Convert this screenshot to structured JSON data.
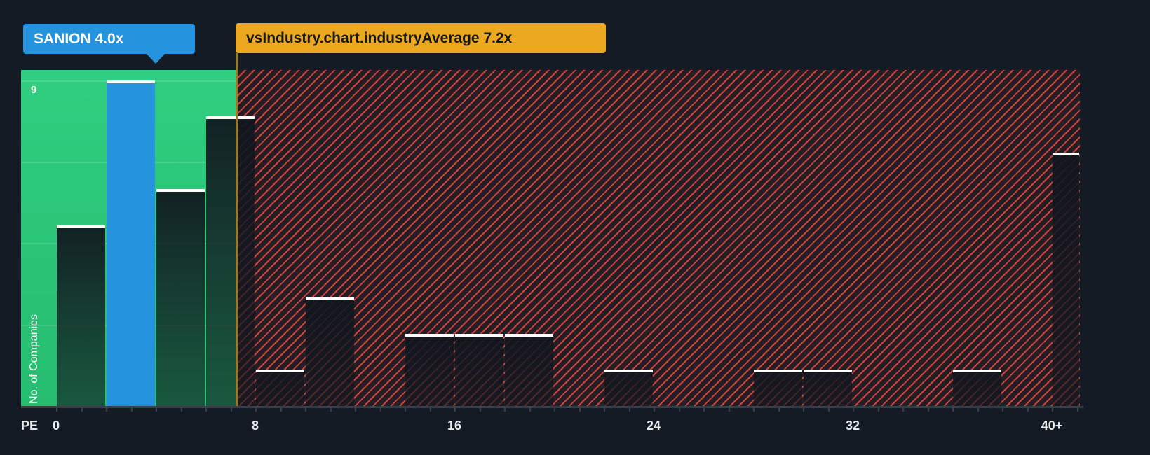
{
  "chart_data": {
    "type": "bar",
    "subtype": "histogram",
    "xlabel": "PE",
    "ylabel": "No. of Companies",
    "x_ticks": [
      {
        "label": "0",
        "value": 0
      },
      {
        "label": "8",
        "value": 8
      },
      {
        "label": "16",
        "value": 16
      },
      {
        "label": "24",
        "value": 24
      },
      {
        "label": "32",
        "value": 32
      },
      {
        "label": "40+",
        "value": 40
      }
    ],
    "y_axis": {
      "max_label": "9",
      "max_value": 9,
      "gridline_values": [
        2.25,
        4.5,
        6.75,
        9
      ]
    },
    "buckets": [
      {
        "pe_from": 0,
        "pe_to": 2,
        "count": 5
      },
      {
        "pe_from": 2,
        "pe_to": 4,
        "count": 9,
        "highlight": true
      },
      {
        "pe_from": 4,
        "pe_to": 6,
        "count": 6
      },
      {
        "pe_from": 6,
        "pe_to": 8,
        "count": 8
      },
      {
        "pe_from": 8,
        "pe_to": 10,
        "count": 1
      },
      {
        "pe_from": 10,
        "pe_to": 12,
        "count": 3
      },
      {
        "pe_from": 12,
        "pe_to": 14,
        "count": 0
      },
      {
        "pe_from": 14,
        "pe_to": 16,
        "count": 2
      },
      {
        "pe_from": 16,
        "pe_to": 18,
        "count": 2
      },
      {
        "pe_from": 18,
        "pe_to": 20,
        "count": 2
      },
      {
        "pe_from": 20,
        "pe_to": 22,
        "count": 0
      },
      {
        "pe_from": 22,
        "pe_to": 24,
        "count": 1
      },
      {
        "pe_from": 24,
        "pe_to": 26,
        "count": 0
      },
      {
        "pe_from": 26,
        "pe_to": 28,
        "count": 0
      },
      {
        "pe_from": 28,
        "pe_to": 30,
        "count": 1
      },
      {
        "pe_from": 30,
        "pe_to": 32,
        "count": 1
      },
      {
        "pe_from": 32,
        "pe_to": 34,
        "count": 0
      },
      {
        "pe_from": 34,
        "pe_to": 36,
        "count": 0
      },
      {
        "pe_from": 36,
        "pe_to": 38,
        "count": 1
      },
      {
        "pe_from": 38,
        "pe_to": 40,
        "count": 0
      },
      {
        "pe_from": 40,
        "pe_to": 42,
        "count": 7,
        "overflow_label": "40+"
      }
    ],
    "company_marker": {
      "label": "SANION 4.0x",
      "value": 4,
      "color": "#2593DE"
    },
    "industry_marker": {
      "label": "vsIndustry.chart.industryAverage 7.2x",
      "value": 7.2,
      "color": "#ECA81F",
      "line_color": "#9A7A1C"
    },
    "colors": {
      "background": "#151B24",
      "below_average_region": "#2CC97B",
      "above_average_hatch": "#E84D3D",
      "bar_cap": "#FFFFFF",
      "company_bar": "#2593DE"
    }
  }
}
